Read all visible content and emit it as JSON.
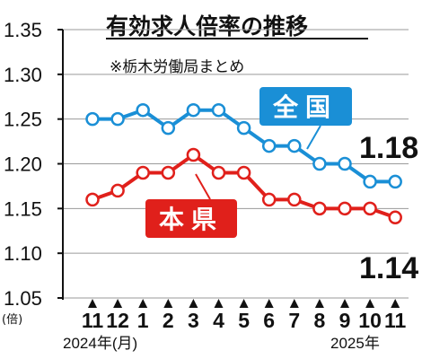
{
  "chart_data": {
    "type": "line",
    "title": "有効求人倍率の推移",
    "note": "※栃木労働局まとめ",
    "ylabel": "(倍)",
    "ylim": [
      1.05,
      1.35
    ],
    "yticks": [
      "1.35",
      "1.30",
      "1.25",
      "1.20",
      "1.15",
      "1.10",
      "1.05"
    ],
    "categories": [
      "11",
      "12",
      "1",
      "2",
      "3",
      "4",
      "5",
      "6",
      "7",
      "8",
      "9",
      "10",
      "11"
    ],
    "year_labels": {
      "start": "2024年(月)",
      "end": "2025年"
    },
    "series": [
      {
        "name": "全国",
        "color": "#1a8fd6",
        "values": [
          1.25,
          1.25,
          1.26,
          1.24,
          1.26,
          1.26,
          1.24,
          1.22,
          1.22,
          1.2,
          1.2,
          1.18,
          1.18
        ],
        "end_label": "1.18"
      },
      {
        "name": "本県",
        "color": "#e0201b",
        "values": [
          1.16,
          1.17,
          1.19,
          1.19,
          1.21,
          1.19,
          1.19,
          1.16,
          1.16,
          1.15,
          1.15,
          1.15,
          1.14
        ],
        "end_label": "1.14"
      }
    ]
  }
}
